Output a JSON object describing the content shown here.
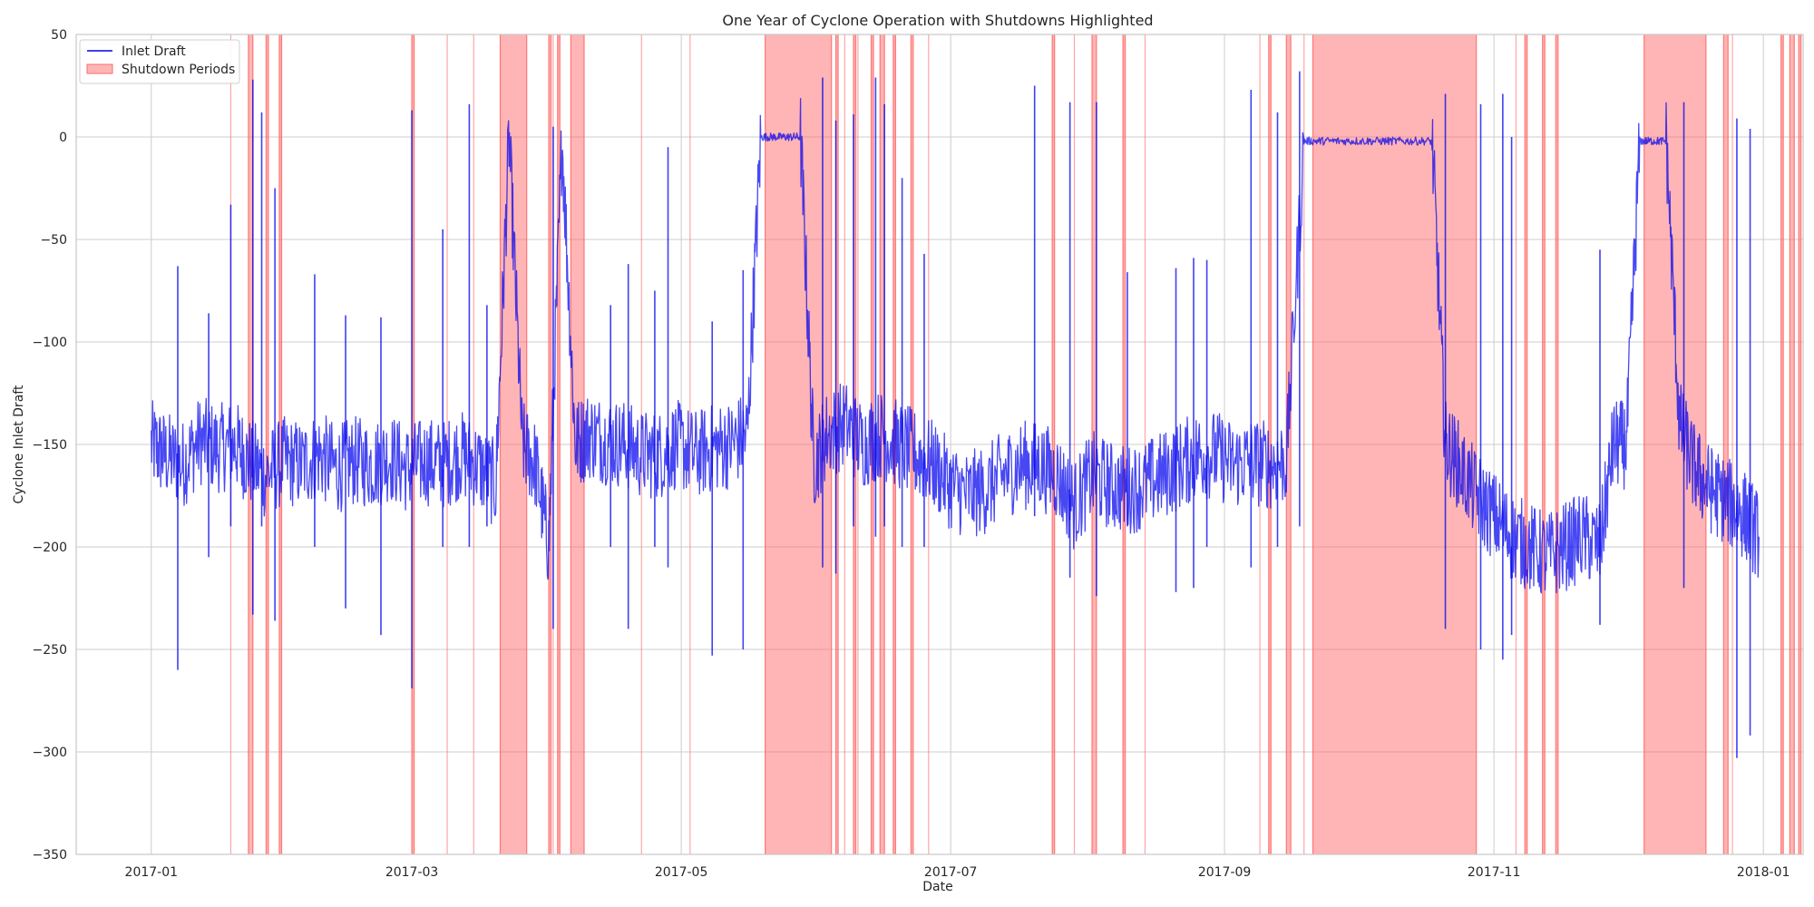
{
  "chart_data": {
    "type": "line",
    "title": "One Year of Cyclone Operation with Shutdowns Highlighted",
    "xlabel": "Date",
    "ylabel": "Cyclone Inlet Draft",
    "xlim": [
      "2016-12-15",
      "2018-01-10"
    ],
    "ylim": [
      -350,
      50
    ],
    "x_ticks": [
      "2017-01-01",
      "2017-03-01",
      "2017-05-01",
      "2017-07-01",
      "2017-09-01",
      "2017-11-01",
      "2018-01-01"
    ],
    "x_tick_labels": [
      "2017-01",
      "2017-03",
      "2017-05",
      "2017-07",
      "2017-09",
      "2017-11",
      "2018-01"
    ],
    "y_ticks": [
      50,
      0,
      -50,
      -100,
      -150,
      -200,
      -250,
      -300,
      -350
    ],
    "grid": true,
    "legend_position": "top-left",
    "colors": {
      "line": "#0000ee",
      "shutdown": "#ff6b6b",
      "grid": "#cccccc",
      "frame": "#c8c8c8"
    },
    "series": [
      {
        "name": "Inlet Draft",
        "x": [
          "2017-01-01",
          "2017-01-04",
          "2017-01-08",
          "2017-01-12",
          "2017-01-16",
          "2017-01-20",
          "2017-01-23",
          "2017-01-27",
          "2017-01-31",
          "2017-02-04",
          "2017-02-08",
          "2017-02-12",
          "2017-02-16",
          "2017-02-20",
          "2017-02-24",
          "2017-02-28",
          "2017-03-04",
          "2017-03-08",
          "2017-03-12",
          "2017-03-16",
          "2017-03-20",
          "2017-03-23",
          "2017-03-26",
          "2017-03-29",
          "2017-04-01",
          "2017-04-04",
          "2017-04-07",
          "2017-04-10",
          "2017-04-14",
          "2017-04-18",
          "2017-04-22",
          "2017-04-26",
          "2017-04-30",
          "2017-05-04",
          "2017-05-08",
          "2017-05-12",
          "2017-05-16",
          "2017-05-19",
          "2017-05-22",
          "2017-05-25",
          "2017-05-28",
          "2017-05-31",
          "2017-06-03",
          "2017-06-07",
          "2017-06-11",
          "2017-06-15",
          "2017-06-19",
          "2017-06-23",
          "2017-06-27",
          "2017-07-01",
          "2017-07-05",
          "2017-07-09",
          "2017-07-13",
          "2017-07-17",
          "2017-07-21",
          "2017-07-25",
          "2017-07-29",
          "2017-08-02",
          "2017-08-06",
          "2017-08-10",
          "2017-08-14",
          "2017-08-18",
          "2017-08-22",
          "2017-08-26",
          "2017-08-30",
          "2017-09-03",
          "2017-09-07",
          "2017-09-11",
          "2017-09-15",
          "2017-09-19",
          "2017-09-23",
          "2017-09-28",
          "2017-10-03",
          "2017-10-08",
          "2017-10-13",
          "2017-10-18",
          "2017-10-21",
          "2017-10-24",
          "2017-10-28",
          "2017-11-01",
          "2017-11-05",
          "2017-11-09",
          "2017-11-13",
          "2017-11-17",
          "2017-11-21",
          "2017-11-25",
          "2017-11-28",
          "2017-12-01",
          "2017-12-04",
          "2017-12-07",
          "2017-12-10",
          "2017-12-13",
          "2017-12-16",
          "2017-12-19",
          "2017-12-22",
          "2017-12-25",
          "2017-12-28",
          "2017-12-31"
        ],
        "y": [
          -150,
          -155,
          -160,
          -148,
          -152,
          -150,
          -158,
          -165,
          -158,
          -160,
          -155,
          -162,
          -158,
          -160,
          -156,
          -162,
          -158,
          -160,
          -155,
          -160,
          -170,
          0,
          -150,
          -160,
          -200,
          0,
          -150,
          -145,
          -148,
          -150,
          -155,
          -155,
          -150,
          -155,
          -152,
          -150,
          -145,
          0,
          0,
          0,
          0,
          -160,
          -145,
          -140,
          -150,
          -145,
          -150,
          -155,
          -160,
          -170,
          -175,
          -172,
          -165,
          -160,
          -160,
          -165,
          -180,
          -165,
          -170,
          -172,
          -170,
          -165,
          -160,
          -155,
          -155,
          -160,
          -158,
          -160,
          -158,
          -2,
          -2,
          -2,
          -2,
          -2,
          -2,
          -2,
          -150,
          -160,
          -175,
          -185,
          -195,
          -200,
          -205,
          -200,
          -195,
          -200,
          -150,
          -150,
          -2,
          -2,
          -2,
          -140,
          -160,
          -170,
          -175,
          -180,
          -185,
          -195
        ]
      }
    ],
    "spikes": {
      "name": "Inlet Draft",
      "x": [
        "2017-01-07",
        "2017-01-14",
        "2017-01-19",
        "2017-01-24",
        "2017-01-26",
        "2017-01-29",
        "2017-02-07",
        "2017-02-14",
        "2017-02-22",
        "2017-03-01",
        "2017-03-08",
        "2017-03-14",
        "2017-03-18",
        "2017-04-02",
        "2017-04-15",
        "2017-04-19",
        "2017-04-25",
        "2017-04-28",
        "2017-05-08",
        "2017-05-15",
        "2017-06-02",
        "2017-06-05",
        "2017-06-09",
        "2017-06-14",
        "2017-06-16",
        "2017-06-20",
        "2017-06-25",
        "2017-07-20",
        "2017-07-28",
        "2017-08-03",
        "2017-08-10",
        "2017-08-21",
        "2017-08-25",
        "2017-08-28",
        "2017-09-07",
        "2017-09-13",
        "2017-09-18",
        "2017-10-21",
        "2017-10-29",
        "2017-11-03",
        "2017-11-05",
        "2017-11-25",
        "2017-12-14",
        "2017-12-26",
        "2017-12-29"
      ],
      "peak": [
        -63,
        -86,
        -33,
        28,
        12,
        -25,
        -67,
        -87,
        -88,
        13,
        -45,
        16,
        -82,
        5,
        -82,
        -62,
        -75,
        -5,
        -90,
        -65,
        29,
        8,
        11,
        29,
        16,
        -20,
        -57,
        25,
        17,
        17,
        -66,
        -64,
        -59,
        -60,
        23,
        12,
        32,
        21,
        16,
        21,
        0,
        -55,
        17,
        9,
        4
      ],
      "trough": [
        -260,
        -205,
        -190,
        -233,
        -190,
        -236,
        -200,
        -230,
        -243,
        -269,
        -200,
        -200,
        -190,
        -240,
        -200,
        -240,
        -200,
        -210,
        -253,
        -250,
        -210,
        -213,
        -190,
        -195,
        -190,
        -200,
        -200,
        -185,
        -215,
        -224,
        -190,
        -222,
        -220,
        -200,
        -210,
        -200,
        -190,
        -240,
        -250,
        -255,
        -243,
        -238,
        -220,
        -303,
        -292
      ]
    },
    "shutdown_periods": {
      "name": "Shutdown Periods",
      "bands": [
        [
          "2017-01-23",
          "2017-01-24"
        ],
        [
          "2017-01-27",
          "2017-01-27"
        ],
        [
          "2017-01-30",
          "2017-01-30"
        ],
        [
          "2017-03-01",
          "2017-03-01"
        ],
        [
          "2017-03-21",
          "2017-03-27"
        ],
        [
          "2017-04-01",
          "2017-04-01"
        ],
        [
          "2017-04-03",
          "2017-04-03"
        ],
        [
          "2017-04-06",
          "2017-04-09"
        ],
        [
          "2017-05-20",
          "2017-06-04"
        ],
        [
          "2017-06-05",
          "2017-06-05"
        ],
        [
          "2017-06-09",
          "2017-06-09"
        ],
        [
          "2017-06-13",
          "2017-06-13"
        ],
        [
          "2017-06-15",
          "2017-06-16"
        ],
        [
          "2017-06-18",
          "2017-06-18"
        ],
        [
          "2017-06-22",
          "2017-06-22"
        ],
        [
          "2017-07-24",
          "2017-07-24"
        ],
        [
          "2017-08-02",
          "2017-08-03"
        ],
        [
          "2017-08-09",
          "2017-08-09"
        ],
        [
          "2017-09-11",
          "2017-09-11"
        ],
        [
          "2017-09-15",
          "2017-09-16"
        ],
        [
          "2017-09-21",
          "2017-10-28"
        ],
        [
          "2017-11-08",
          "2017-11-08"
        ],
        [
          "2017-11-12",
          "2017-11-12"
        ],
        [
          "2017-11-15",
          "2017-11-15"
        ],
        [
          "2017-12-05",
          "2017-12-19"
        ],
        [
          "2017-12-23",
          "2017-12-24"
        ],
        [
          "2018-01-05",
          "2018-01-05"
        ],
        [
          "2018-01-07",
          "2018-01-08"
        ],
        [
          "2018-01-09",
          "2018-01-09"
        ]
      ],
      "thin_marks": [
        "2017-01-19",
        "2017-03-09",
        "2017-03-15",
        "2017-04-02",
        "2017-04-22",
        "2017-05-03",
        "2017-06-07",
        "2017-06-10",
        "2017-06-26",
        "2017-07-29",
        "2017-08-14",
        "2017-09-09",
        "2017-09-19",
        "2017-11-06",
        "2017-12-25"
      ]
    },
    "legend": [
      {
        "label": "Inlet Draft",
        "kind": "line"
      },
      {
        "label": "Shutdown Periods",
        "kind": "patch"
      }
    ]
  }
}
